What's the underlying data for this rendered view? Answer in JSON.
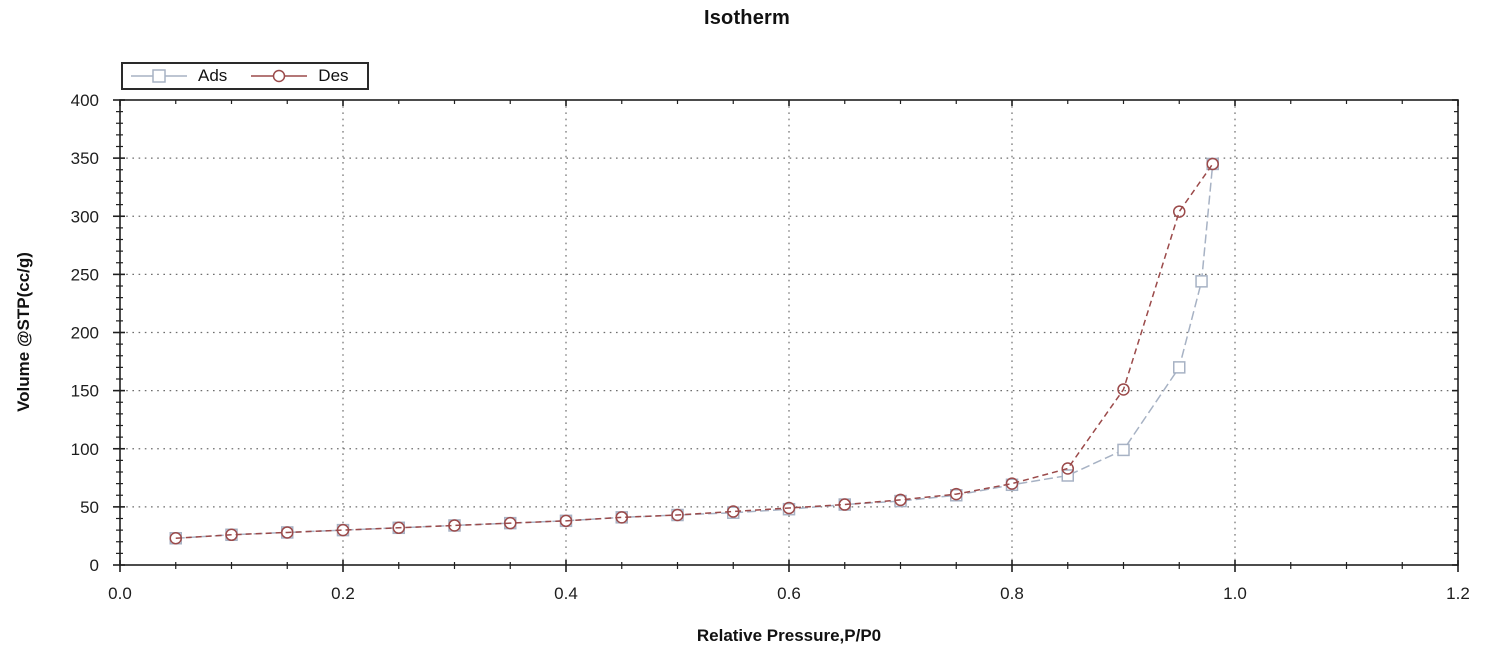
{
  "chart_data": {
    "type": "line",
    "title": "Isotherm",
    "xlabel": "Relative Pressure,P/P0",
    "ylabel": "Volume @STP(cc/g)",
    "xlim": [
      0.0,
      1.2
    ],
    "ylim": [
      0,
      400
    ],
    "x_major_step": 0.2,
    "x_minor_step": 0.05,
    "y_major_step": 50,
    "y_minor_step": 10,
    "x_tick_decimals": 1,
    "grid": "dotted at major ticks",
    "legend_position": "top-left",
    "background_color": "#ffffff",
    "frame_color": "#1f1f1f",
    "grid_color": "#6e6e6e",
    "series": [
      {
        "name": "Ads",
        "marker": "square",
        "color": "#a7b2c4",
        "dash": [
          9,
          4
        ],
        "x": [
          0.05,
          0.1,
          0.15,
          0.2,
          0.25,
          0.3,
          0.35,
          0.4,
          0.45,
          0.5,
          0.55,
          0.6,
          0.65,
          0.7,
          0.75,
          0.8,
          0.85,
          0.9,
          0.95,
          0.97,
          0.98
        ],
        "y": [
          23,
          26,
          28,
          30,
          32,
          34,
          36,
          38,
          41,
          43,
          45,
          48,
          52,
          55,
          60,
          69,
          77,
          99,
          170,
          244,
          345
        ]
      },
      {
        "name": "Des",
        "marker": "circle",
        "color": "#9b4a4a",
        "dash": [
          6,
          4
        ],
        "x": [
          0.05,
          0.1,
          0.15,
          0.2,
          0.25,
          0.3,
          0.35,
          0.4,
          0.45,
          0.5,
          0.55,
          0.6,
          0.65,
          0.7,
          0.75,
          0.8,
          0.85,
          0.9,
          0.95,
          0.98
        ],
        "y": [
          23,
          26,
          28,
          30,
          32,
          34,
          36,
          38,
          41,
          43,
          46,
          49,
          52,
          56,
          61,
          70,
          83,
          151,
          304,
          345
        ]
      }
    ]
  }
}
